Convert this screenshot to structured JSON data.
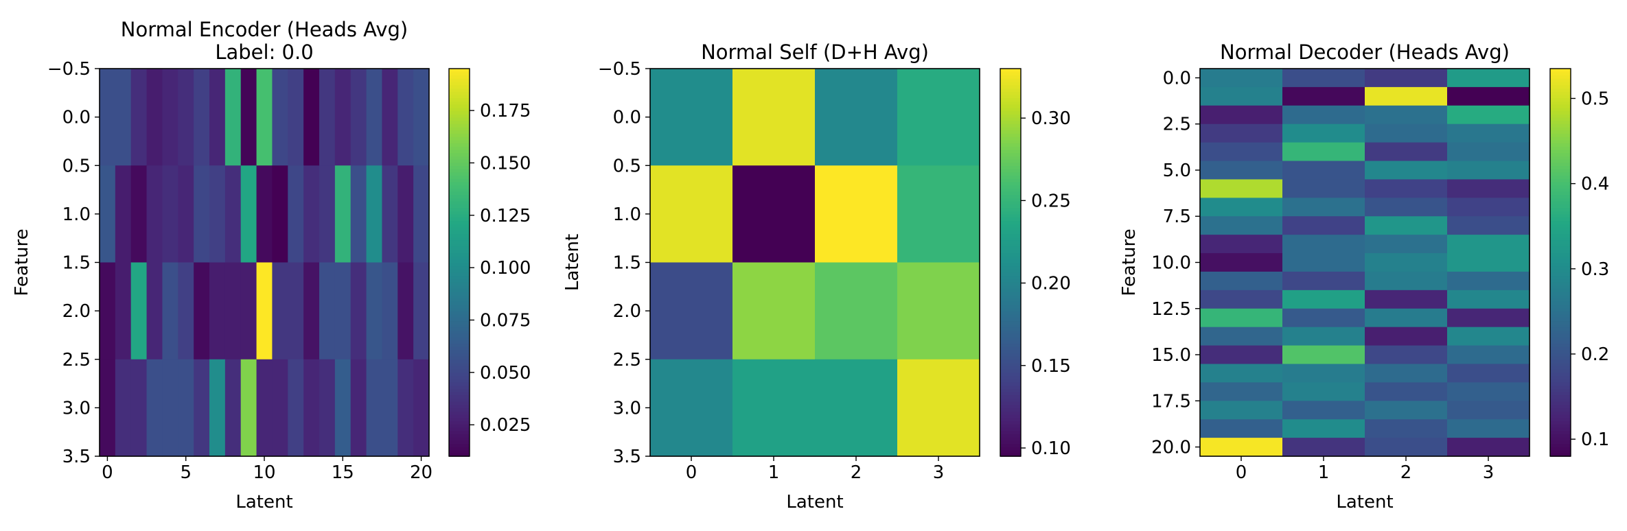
{
  "chart_data": [
    {
      "type": "heatmap",
      "title_lines": [
        "Normal Encoder (Heads Avg)",
        "Label: 0.0"
      ],
      "xlabel": "Latent",
      "ylabel": "Feature",
      "x_ticks": [
        "0",
        "5",
        "10",
        "15",
        "20"
      ],
      "x_tick_values": [
        0,
        5,
        10,
        15,
        20
      ],
      "y_ticks": [
        "−0.5",
        "0.0",
        "0.5",
        "1.0",
        "1.5",
        "2.0",
        "2.5",
        "3.0",
        "3.5"
      ],
      "y_tick_values": [
        -0.5,
        0,
        0.5,
        1,
        1.5,
        2,
        2.5,
        3,
        3.5
      ],
      "xlim": [
        -0.5,
        20.5
      ],
      "ylim": [
        -0.5,
        3.5
      ],
      "colormap": "viridis",
      "vmin": 0.01,
      "vmax": 0.195,
      "colorbar_ticks": [
        "0.025",
        "0.050",
        "0.075",
        "0.100",
        "0.125",
        "0.150",
        "0.175"
      ],
      "colorbar_tick_values": [
        0.025,
        0.05,
        0.075,
        0.1,
        0.125,
        0.15,
        0.175
      ],
      "values": [
        [
          0.055,
          0.055,
          0.035,
          0.025,
          0.03,
          0.035,
          0.045,
          0.03,
          0.13,
          0.012,
          0.14,
          0.05,
          0.045,
          0.01,
          0.04,
          0.03,
          0.04,
          0.055,
          0.03,
          0.05,
          0.055
        ],
        [
          0.06,
          0.025,
          0.015,
          0.03,
          0.035,
          0.03,
          0.05,
          0.045,
          0.035,
          0.12,
          0.015,
          0.01,
          0.05,
          0.035,
          0.04,
          0.13,
          0.055,
          0.1,
          0.04,
          0.025,
          0.05
        ],
        [
          0.015,
          0.025,
          0.12,
          0.03,
          0.055,
          0.045,
          0.015,
          0.025,
          0.025,
          0.025,
          0.195,
          0.04,
          0.04,
          0.02,
          0.055,
          0.055,
          0.035,
          0.06,
          0.055,
          0.02,
          0.045
        ],
        [
          0.015,
          0.035,
          0.035,
          0.055,
          0.055,
          0.055,
          0.04,
          0.1,
          0.035,
          0.16,
          0.03,
          0.03,
          0.045,
          0.03,
          0.035,
          0.065,
          0.03,
          0.055,
          0.055,
          0.035,
          0.03
        ]
      ]
    },
    {
      "type": "heatmap",
      "title_lines": [
        "Normal Self (D+H Avg)"
      ],
      "xlabel": "Latent",
      "ylabel": "Latent",
      "x_ticks": [
        "0",
        "1",
        "2",
        "3"
      ],
      "x_tick_values": [
        0,
        1,
        2,
        3
      ],
      "y_ticks": [
        "−0.5",
        "0.0",
        "0.5",
        "1.0",
        "1.5",
        "2.0",
        "2.5",
        "3.0",
        "3.5"
      ],
      "y_tick_values": [
        -0.5,
        0,
        0.5,
        1,
        1.5,
        2,
        2.5,
        3,
        3.5
      ],
      "xlim": [
        -0.5,
        3.5
      ],
      "ylim": [
        -0.5,
        3.5
      ],
      "colormap": "viridis",
      "vmin": 0.095,
      "vmax": 0.33,
      "colorbar_ticks": [
        "0.10",
        "0.15",
        "0.20",
        "0.25",
        "0.30"
      ],
      "colorbar_tick_values": [
        0.1,
        0.15,
        0.2,
        0.25,
        0.3
      ],
      "values": [
        [
          0.21,
          0.32,
          0.205,
          0.24
        ],
        [
          0.32,
          0.095,
          0.33,
          0.25
        ],
        [
          0.15,
          0.29,
          0.27,
          0.285
        ],
        [
          0.205,
          0.23,
          0.23,
          0.32
        ]
      ]
    },
    {
      "type": "heatmap",
      "title_lines": [
        "Normal Decoder (Heads Avg)"
      ],
      "xlabel": "Latent",
      "ylabel": "Feature",
      "x_ticks": [
        "0",
        "1",
        "2",
        "3"
      ],
      "x_tick_values": [
        0,
        1,
        2,
        3
      ],
      "y_ticks": [
        "0.0",
        "2.5",
        "5.0",
        "7.5",
        "10.0",
        "12.5",
        "15.0",
        "17.5",
        "20.0"
      ],
      "y_tick_values": [
        0,
        2.5,
        5,
        7.5,
        10,
        12.5,
        15,
        17.5,
        20
      ],
      "xlim": [
        -0.5,
        3.5
      ],
      "ylim": [
        -0.5,
        20.5
      ],
      "colormap": "viridis",
      "vmin": 0.08,
      "vmax": 0.535,
      "colorbar_ticks": [
        "0.1",
        "0.2",
        "0.3",
        "0.4",
        "0.5"
      ],
      "colorbar_tick_values": [
        0.1,
        0.2,
        0.3,
        0.4,
        0.5
      ],
      "values": [
        [
          0.27,
          0.19,
          0.16,
          0.33
        ],
        [
          0.28,
          0.09,
          0.52,
          0.08
        ],
        [
          0.12,
          0.24,
          0.25,
          0.36
        ],
        [
          0.16,
          0.3,
          0.24,
          0.26
        ],
        [
          0.19,
          0.38,
          0.16,
          0.25
        ],
        [
          0.22,
          0.2,
          0.29,
          0.28
        ],
        [
          0.48,
          0.2,
          0.17,
          0.14
        ],
        [
          0.3,
          0.25,
          0.2,
          0.17
        ],
        [
          0.25,
          0.17,
          0.32,
          0.19
        ],
        [
          0.13,
          0.24,
          0.25,
          0.32
        ],
        [
          0.1,
          0.24,
          0.28,
          0.32
        ],
        [
          0.22,
          0.18,
          0.27,
          0.24
        ],
        [
          0.18,
          0.34,
          0.13,
          0.29
        ],
        [
          0.38,
          0.21,
          0.27,
          0.13
        ],
        [
          0.23,
          0.28,
          0.12,
          0.29
        ],
        [
          0.14,
          0.41,
          0.18,
          0.24
        ],
        [
          0.28,
          0.27,
          0.24,
          0.19
        ],
        [
          0.23,
          0.28,
          0.2,
          0.22
        ],
        [
          0.28,
          0.22,
          0.25,
          0.21
        ],
        [
          0.22,
          0.3,
          0.2,
          0.24
        ],
        [
          0.53,
          0.15,
          0.19,
          0.12
        ]
      ]
    }
  ]
}
